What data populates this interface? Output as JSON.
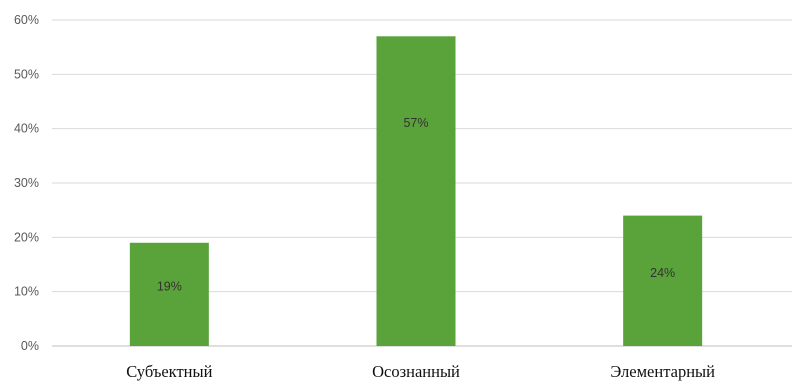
{
  "chart_data": {
    "type": "bar",
    "title": "",
    "xlabel": "",
    "ylabel": "",
    "categories": [
      "Субъектный",
      "Осознанный",
      "Элементарный"
    ],
    "values": [
      19,
      57,
      24
    ],
    "data_labels": [
      "19%",
      "57%",
      "24%"
    ],
    "ylim": [
      0,
      60
    ],
    "y_ticks": [
      0,
      10,
      20,
      30,
      40,
      50,
      60
    ],
    "y_tick_labels": [
      "0%",
      "10%",
      "20%",
      "30%",
      "40%",
      "50%",
      "60%"
    ],
    "grid": true,
    "legend": "none",
    "bar_color": "#5aa23a"
  }
}
